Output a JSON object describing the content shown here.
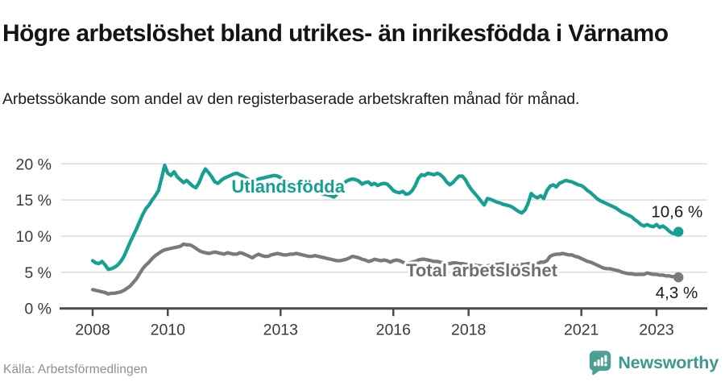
{
  "header": {
    "title": "Högre arbetslöshet bland utrikes- än inrikesfödda i Värnamo",
    "subtitle": "Arbetssökande som andel av den registerbaserade arbetskraften månad för månad."
  },
  "source": {
    "label": "Källa: Arbetsförmedlingen"
  },
  "branding": {
    "wordmark": "Newsworthy",
    "icon": "newsworthy-bubble-chart-icon"
  },
  "colors": {
    "teal_line": "#16a092",
    "gray_line": "#7a7a7a",
    "gray_label": "#6e6e73",
    "axis_text": "#3b3b3b",
    "axis_line": "#4a4a4a",
    "grid": "#dcdcdc",
    "value_label": "#1a1a1a",
    "brand_teal": "#3d998c",
    "title_text": "#141414"
  },
  "chart_data": {
    "type": "line",
    "title": "Högre arbetslöshet bland utrikes- än inrikesfödda i Värnamo",
    "subtitle": "Arbetssökande som andel av den registerbaserade arbetskraften månad för månad.",
    "xlabel": "",
    "ylabel": "",
    "grid": true,
    "legend_position": "inline-labels",
    "x_axis": {
      "range": [
        2007.8,
        2024.35
      ],
      "ticks": [
        2008,
        2010,
        2013,
        2016,
        2018,
        2021,
        2023
      ],
      "tick_labels": [
        "2008",
        "2010",
        "2013",
        "2016",
        "2018",
        "2021",
        "2023"
      ]
    },
    "y_axis": {
      "range": [
        0,
        20
      ],
      "ticks": [
        0,
        5,
        10,
        15,
        20
      ],
      "tick_labels": [
        "0 %",
        "5 %",
        "10 %",
        "15 %",
        "20 %"
      ]
    },
    "x_start": 2008.0,
    "x_step_years": 0.0833333,
    "series": [
      {
        "name": "Utlandsfödda",
        "color": "#16a092",
        "label_color": "#16a092",
        "label_anchor": {
          "x": 2013.2,
          "y": 16.0
        },
        "end_value": 10.6,
        "end_label": "10,6 %",
        "end_label_offset": [
          30,
          -18
        ],
        "values": [
          6.6,
          6.3,
          6.2,
          6.5,
          6.0,
          5.4,
          5.5,
          5.7,
          6.0,
          6.5,
          7.2,
          8.2,
          9.2,
          10.1,
          11.0,
          12.0,
          13.0,
          13.8,
          14.3,
          15.0,
          15.6,
          16.3,
          18.0,
          19.8,
          18.7,
          18.4,
          18.9,
          18.2,
          17.8,
          17.4,
          17.7,
          17.3,
          16.9,
          16.7,
          17.4,
          18.5,
          19.3,
          18.8,
          18.2,
          17.5,
          17.3,
          17.7,
          18.0,
          18.2,
          18.4,
          18.6,
          18.7,
          18.5,
          18.3,
          18.0,
          17.8,
          17.6,
          17.7,
          17.9,
          18.0,
          18.1,
          18.2,
          18.3,
          18.4,
          18.3,
          18.1,
          17.8,
          17.5,
          17.3,
          17.1,
          16.9,
          16.8,
          16.7,
          16.5,
          16.4,
          16.3,
          16.2,
          16.1,
          15.9,
          15.8,
          15.7,
          15.6,
          15.4,
          15.8,
          16.5,
          17.2,
          17.6,
          17.8,
          17.9,
          17.8,
          17.6,
          17.2,
          17.4,
          17.5,
          17.1,
          17.3,
          17.0,
          17.2,
          17.3,
          17.2,
          16.8,
          16.3,
          16.1,
          16.0,
          16.2,
          15.8,
          15.9,
          16.3,
          17.0,
          18.0,
          18.5,
          18.4,
          18.7,
          18.6,
          18.5,
          18.7,
          18.5,
          18.1,
          17.5,
          17.1,
          17.4,
          17.9,
          18.3,
          18.3,
          17.8,
          17.0,
          16.4,
          15.9,
          15.4,
          14.8,
          14.3,
          15.2,
          15.1,
          14.9,
          14.7,
          14.6,
          14.4,
          14.3,
          14.2,
          14.0,
          13.7,
          13.4,
          13.2,
          13.6,
          14.5,
          15.9,
          15.5,
          15.3,
          15.6,
          15.2,
          16.3,
          16.9,
          17.1,
          16.8,
          17.3,
          17.5,
          17.7,
          17.6,
          17.5,
          17.3,
          17.1,
          17.0,
          16.7,
          16.3,
          16.0,
          15.6,
          15.2,
          14.9,
          14.7,
          14.5,
          14.3,
          14.1,
          13.9,
          13.6,
          13.3,
          13.1,
          12.9,
          12.7,
          12.3,
          12.0,
          11.6,
          11.4,
          11.6,
          11.4,
          11.3,
          11.6,
          11.2,
          11.4,
          11.1,
          10.7,
          10.4,
          10.3,
          10.6
        ]
      },
      {
        "name": "Total arbetslöshet",
        "color": "#7a7a7a",
        "label_color": "#6e6e73",
        "label_anchor": {
          "x": 2018.35,
          "y": 4.4
        },
        "end_value": 4.3,
        "end_label": "4,3 %",
        "end_label_offset": [
          24,
          26
        ],
        "values": [
          2.6,
          2.5,
          2.4,
          2.3,
          2.2,
          2.0,
          2.1,
          2.1,
          2.2,
          2.3,
          2.5,
          2.8,
          3.1,
          3.6,
          4.1,
          4.8,
          5.5,
          6.0,
          6.4,
          6.9,
          7.3,
          7.6,
          7.9,
          8.1,
          8.2,
          8.3,
          8.4,
          8.5,
          8.6,
          8.9,
          8.8,
          8.8,
          8.6,
          8.3,
          8.0,
          7.8,
          7.7,
          7.6,
          7.7,
          7.8,
          7.7,
          7.6,
          7.5,
          7.7,
          7.6,
          7.5,
          7.5,
          7.7,
          7.6,
          7.4,
          7.2,
          7.0,
          7.3,
          7.5,
          7.3,
          7.2,
          7.2,
          7.4,
          7.5,
          7.6,
          7.5,
          7.4,
          7.4,
          7.5,
          7.5,
          7.6,
          7.5,
          7.4,
          7.3,
          7.2,
          7.2,
          7.3,
          7.2,
          7.1,
          7.0,
          6.9,
          6.8,
          6.7,
          6.6,
          6.6,
          6.7,
          6.8,
          7.0,
          7.2,
          7.1,
          7.0,
          6.8,
          6.7,
          6.5,
          6.6,
          6.8,
          6.7,
          6.6,
          6.7,
          6.6,
          6.4,
          6.6,
          6.7,
          6.6,
          6.4,
          6.2,
          6.3,
          6.4,
          6.5,
          6.7,
          6.8,
          6.8,
          6.7,
          6.6,
          6.5,
          6.5,
          6.4,
          6.3,
          6.2,
          6.2,
          6.3,
          6.3,
          6.2,
          6.2,
          6.1,
          6.1,
          6.0,
          6.0,
          5.9,
          5.9,
          5.8,
          5.9,
          6.0,
          6.0,
          6.1,
          6.1,
          6.2,
          6.2,
          6.1,
          6.1,
          6.0,
          6.0,
          6.1,
          6.1,
          6.2,
          6.2,
          6.2,
          6.2,
          6.4,
          6.4,
          6.6,
          7.2,
          7.4,
          7.5,
          7.5,
          7.6,
          7.5,
          7.4,
          7.4,
          7.2,
          7.1,
          6.9,
          6.7,
          6.5,
          6.4,
          6.2,
          6.0,
          5.8,
          5.6,
          5.5,
          5.5,
          5.4,
          5.3,
          5.2,
          5.0,
          4.9,
          4.8,
          4.8,
          4.7,
          4.7,
          4.7,
          4.7,
          4.9,
          4.8,
          4.7,
          4.7,
          4.6,
          4.6,
          4.5,
          4.5,
          4.4,
          4.4,
          4.3
        ]
      }
    ]
  }
}
